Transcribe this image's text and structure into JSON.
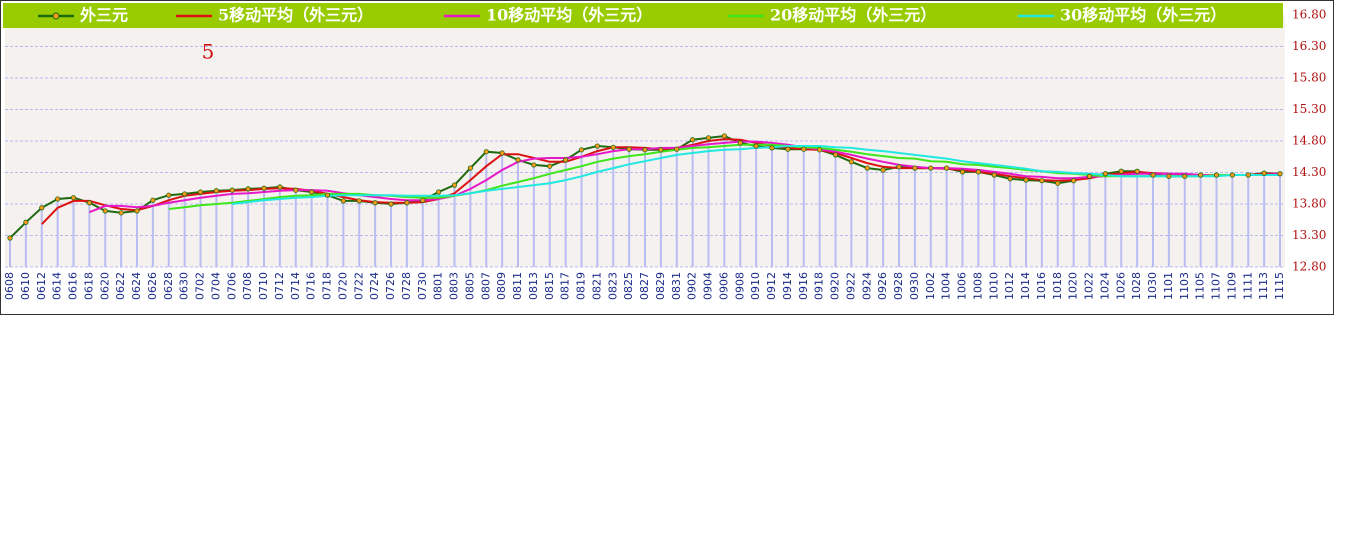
{
  "chart_data": {
    "type": "line",
    "annotation": "5",
    "legend": "top",
    "grid": true,
    "categories": [
      "0608",
      "0610",
      "0612",
      "0614",
      "0616",
      "0618",
      "0620",
      "0622",
      "0624",
      "0626",
      "0628",
      "0630",
      "0702",
      "0704",
      "0706",
      "0708",
      "0710",
      "0712",
      "0714",
      "0716",
      "0718",
      "0720",
      "0722",
      "0724",
      "0726",
      "0728",
      "0730",
      "0801",
      "0803",
      "0805",
      "0807",
      "0809",
      "0811",
      "0813",
      "0815",
      "0817",
      "0819",
      "0821",
      "0823",
      "0825",
      "0827",
      "0829",
      "0831",
      "0902",
      "0904",
      "0906",
      "0908",
      "0910",
      "0912",
      "0914",
      "0916",
      "0918",
      "0920",
      "0922",
      "0924",
      "0926",
      "0928",
      "0930",
      "1002",
      "1004",
      "1006",
      "1008",
      "1010",
      "1012",
      "1014",
      "1016",
      "1018",
      "1020",
      "1022",
      "1024",
      "1026",
      "1028",
      "1030",
      "1101",
      "1103",
      "1105",
      "1107",
      "1109",
      "1111",
      "1113",
      "1115"
    ],
    "ylim": [
      12.8,
      16.8
    ],
    "yticks": [
      {
        "value": 12.8,
        "label": "12.80"
      },
      {
        "value": 13.3,
        "label": "13.30"
      },
      {
        "value": 13.8,
        "label": "13.80"
      },
      {
        "value": 14.3,
        "label": "14.30"
      },
      {
        "value": 14.8,
        "label": "14.80"
      },
      {
        "value": 15.3,
        "label": "15.30"
      },
      {
        "value": 15.8,
        "label": "15.80"
      },
      {
        "value": 16.3,
        "label": "16.30"
      },
      {
        "value": 16.8,
        "label": "16.80"
      }
    ],
    "series": [
      {
        "name": "外三元",
        "color": "#1f6a10",
        "values": [
          13.26,
          13.51,
          13.74,
          13.88,
          13.9,
          13.82,
          13.69,
          13.66,
          13.69,
          13.86,
          13.94,
          13.96,
          13.99,
          14.01,
          14.02,
          14.04,
          14.05,
          14.07,
          14.02,
          13.99,
          13.94,
          13.85,
          13.85,
          13.82,
          13.8,
          13.82,
          13.86,
          13.99,
          14.1,
          14.37,
          14.63,
          14.61,
          14.5,
          14.42,
          14.4,
          14.5,
          14.66,
          14.72,
          14.7,
          14.67,
          14.66,
          14.66,
          14.67,
          14.82,
          14.85,
          14.88,
          14.77,
          14.72,
          14.69,
          14.67,
          14.67,
          14.66,
          14.58,
          14.47,
          14.37,
          14.34,
          14.39,
          14.37,
          14.37,
          14.37,
          14.31,
          14.31,
          14.26,
          14.2,
          14.18,
          14.17,
          14.13,
          14.17,
          14.24,
          14.28,
          14.32,
          14.32,
          14.26,
          14.24,
          14.24,
          14.26,
          14.26,
          14.26,
          14.26,
          14.29,
          14.28
        ]
      },
      {
        "name": "5移动平均（外三元）",
        "color": "#dd1111",
        "values": [
          null,
          null,
          13.48,
          13.74,
          13.85,
          13.85,
          13.78,
          13.72,
          13.7,
          13.77,
          13.86,
          13.93,
          13.96,
          13.99,
          14.01,
          14.02,
          14.04,
          14.05,
          14.04,
          14.01,
          13.96,
          13.91,
          13.86,
          13.83,
          13.82,
          13.82,
          13.83,
          13.88,
          13.97,
          14.18,
          14.4,
          14.59,
          14.59,
          14.53,
          14.47,
          14.47,
          14.55,
          14.64,
          14.7,
          14.7,
          14.69,
          14.67,
          14.69,
          14.74,
          14.8,
          14.83,
          14.82,
          14.77,
          14.72,
          14.69,
          14.67,
          14.66,
          14.61,
          14.53,
          14.45,
          14.39,
          14.37,
          14.37,
          14.37,
          14.36,
          14.34,
          14.31,
          14.28,
          14.24,
          14.21,
          14.18,
          14.17,
          14.18,
          14.21,
          14.26,
          14.29,
          14.31,
          14.29,
          14.28,
          14.26,
          14.26,
          14.26,
          14.26,
          14.26,
          14.28,
          14.28
        ]
      },
      {
        "name": "10移动平均（外三元）",
        "color": "#e619c8",
        "values": [
          null,
          null,
          null,
          null,
          null,
          13.67,
          13.77,
          13.77,
          13.75,
          13.77,
          13.82,
          13.86,
          13.9,
          13.93,
          13.96,
          13.97,
          13.99,
          14.01,
          14.02,
          14.02,
          14.01,
          13.97,
          13.94,
          13.91,
          13.88,
          13.86,
          13.86,
          13.88,
          13.93,
          14.04,
          14.18,
          14.34,
          14.47,
          14.52,
          14.53,
          14.53,
          14.55,
          14.59,
          14.64,
          14.67,
          14.67,
          14.69,
          14.69,
          14.72,
          14.75,
          14.77,
          14.79,
          14.79,
          14.77,
          14.74,
          14.7,
          14.67,
          14.63,
          14.58,
          14.52,
          14.47,
          14.42,
          14.39,
          14.37,
          14.37,
          14.36,
          14.34,
          14.31,
          14.28,
          14.24,
          14.23,
          14.21,
          14.21,
          14.23,
          14.24,
          14.26,
          14.28,
          14.28,
          14.28,
          14.28,
          14.26,
          14.26,
          14.26,
          14.26,
          14.26,
          14.28
        ]
      },
      {
        "name": "20移动平均（外三元）",
        "color": "#3ee61a",
        "values": [
          null,
          null,
          null,
          null,
          null,
          null,
          null,
          null,
          null,
          null,
          13.72,
          13.75,
          13.78,
          13.8,
          13.82,
          13.85,
          13.88,
          13.91,
          13.93,
          13.94,
          13.96,
          13.96,
          13.96,
          13.94,
          13.93,
          13.91,
          13.9,
          13.9,
          13.93,
          13.97,
          14.02,
          14.09,
          14.15,
          14.21,
          14.28,
          14.34,
          14.4,
          14.47,
          14.52,
          14.56,
          14.59,
          14.63,
          14.66,
          14.69,
          14.7,
          14.72,
          14.74,
          14.74,
          14.74,
          14.72,
          14.7,
          14.69,
          14.66,
          14.63,
          14.59,
          14.56,
          14.53,
          14.52,
          14.48,
          14.47,
          14.43,
          14.42,
          14.39,
          14.37,
          14.34,
          14.32,
          14.29,
          14.28,
          14.26,
          14.24,
          14.24,
          14.24,
          14.24,
          14.24,
          14.24,
          14.24,
          14.26,
          14.26,
          14.26,
          14.26,
          14.26
        ]
      },
      {
        "name": "30移动平均（外三元）",
        "color": "#22e8e0",
        "values": [
          null,
          null,
          null,
          null,
          null,
          null,
          null,
          null,
          null,
          null,
          null,
          null,
          null,
          null,
          13.8,
          13.83,
          13.86,
          13.88,
          13.9,
          13.91,
          13.93,
          13.94,
          13.94,
          13.94,
          13.94,
          13.93,
          13.93,
          13.93,
          13.94,
          13.97,
          14.01,
          14.04,
          14.07,
          14.1,
          14.13,
          14.18,
          14.24,
          14.31,
          14.37,
          14.43,
          14.48,
          14.53,
          14.58,
          14.61,
          14.64,
          14.66,
          14.67,
          14.69,
          14.7,
          14.72,
          14.72,
          14.72,
          14.7,
          14.69,
          14.66,
          14.64,
          14.61,
          14.58,
          14.55,
          14.52,
          14.48,
          14.45,
          14.42,
          14.39,
          14.36,
          14.32,
          14.31,
          14.29,
          14.28,
          14.26,
          14.24,
          14.24,
          14.24,
          14.24,
          14.24,
          14.24,
          14.24,
          14.26,
          14.26,
          14.26,
          14.26
        ]
      }
    ]
  }
}
